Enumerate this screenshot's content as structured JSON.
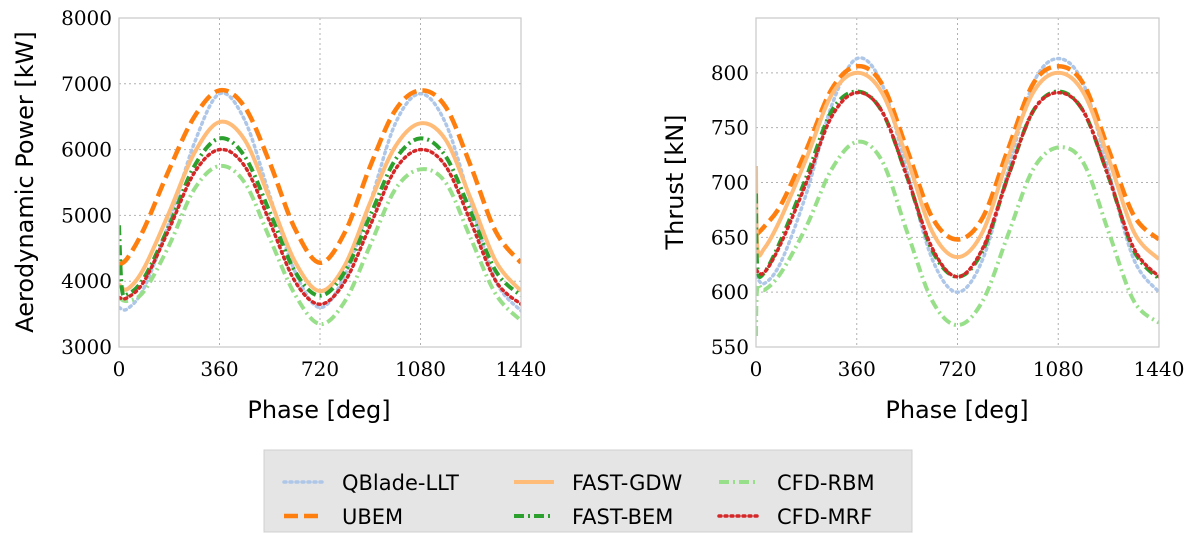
{
  "chart_data": [
    {
      "type": "line",
      "xlabel": "Phase [deg]",
      "ylabel": "Aerodynamic Power [kW]",
      "xlim": [
        0,
        1440
      ],
      "ylim": [
        3000,
        8000
      ],
      "xticks": [
        0,
        360,
        720,
        1080,
        1440
      ],
      "yticks": [
        3000,
        4000,
        5000,
        6000,
        7000,
        8000
      ],
      "grid": true,
      "series": [
        {
          "name": "QBlade-LLT",
          "color": "#aec7e8",
          "style": "dotted",
          "x": [
            0,
            30,
            90,
            180,
            270,
            360,
            450,
            540,
            630,
            720,
            810,
            900,
            990,
            1080,
            1170,
            1260,
            1350,
            1440
          ],
          "y": [
            3600,
            3580,
            3900,
            4900,
            6100,
            6850,
            6450,
            5300,
            4150,
            3600,
            4100,
            5200,
            6400,
            6850,
            6400,
            5200,
            4000,
            3550
          ]
        },
        {
          "name": "UBEM",
          "color": "#ff7f0e",
          "style": "dashed",
          "x": [
            0,
            30,
            90,
            180,
            270,
            360,
            450,
            540,
            630,
            720,
            810,
            900,
            990,
            1080,
            1170,
            1260,
            1350,
            1440
          ],
          "y": [
            4250,
            4350,
            4800,
            5700,
            6500,
            6900,
            6650,
            5800,
            4800,
            4280,
            4750,
            5750,
            6600,
            6900,
            6650,
            5750,
            4750,
            4280
          ]
        },
        {
          "name": "FAST-GDW",
          "color": "#ffbb78",
          "style": "solid",
          "x": [
            0,
            30,
            90,
            180,
            270,
            360,
            450,
            540,
            630,
            720,
            810,
            900,
            990,
            1080,
            1170,
            1260,
            1350,
            1440
          ],
          "y": [
            3950,
            3880,
            4200,
            5050,
            5950,
            6420,
            6150,
            5250,
            4300,
            3850,
            4250,
            5200,
            6050,
            6400,
            6150,
            5250,
            4300,
            3850
          ]
        },
        {
          "name": "FAST-BEM",
          "color": "#2ca02c",
          "style": "dashdot",
          "x": [
            0,
            10,
            30,
            90,
            180,
            270,
            360,
            450,
            540,
            630,
            720,
            810,
            900,
            990,
            1080,
            1170,
            1260,
            1350,
            1440
          ],
          "y": [
            4850,
            3900,
            3800,
            4050,
            4850,
            5750,
            6170,
            5900,
            5050,
            4150,
            3780,
            4150,
            5000,
            5850,
            6170,
            5900,
            5050,
            4150,
            3780
          ]
        },
        {
          "name": "CFD-RBM",
          "color": "#98df8a",
          "style": "dashdot",
          "x": [
            0,
            30,
            90,
            180,
            270,
            360,
            450,
            540,
            630,
            720,
            810,
            900,
            990,
            1080,
            1170,
            1260,
            1350,
            1440
          ],
          "y": [
            3750,
            3700,
            3850,
            4550,
            5400,
            5750,
            5500,
            4650,
            3800,
            3350,
            3700,
            4550,
            5400,
            5700,
            5500,
            4650,
            3800,
            3400
          ]
        },
        {
          "name": "CFD-MRF",
          "color": "#d62728",
          "style": "dotted",
          "x": [
            0,
            30,
            90,
            180,
            270,
            360,
            450,
            540,
            630,
            720,
            810,
            900,
            990,
            1080,
            1170,
            1260,
            1350,
            1440
          ],
          "y": [
            3750,
            3750,
            4000,
            4800,
            5650,
            6000,
            5750,
            4900,
            4000,
            3650,
            4000,
            4850,
            5700,
            6000,
            5750,
            4900,
            4000,
            3650
          ]
        }
      ]
    },
    {
      "type": "line",
      "xlabel": "Phase [deg]",
      "ylabel": "Thrust [kN]",
      "xlim": [
        0,
        1440
      ],
      "ylim": [
        550,
        850
      ],
      "xticks": [
        0,
        360,
        720,
        1080,
        1440
      ],
      "yticks": [
        550,
        600,
        650,
        700,
        750,
        800
      ],
      "grid": true,
      "series": [
        {
          "name": "QBlade-LLT",
          "color": "#aec7e8",
          "style": "dotted",
          "x": [
            0,
            30,
            90,
            180,
            270,
            360,
            450,
            540,
            630,
            720,
            810,
            900,
            990,
            1080,
            1170,
            1260,
            1350,
            1440
          ],
          "y": [
            615,
            608,
            628,
            690,
            770,
            813,
            790,
            710,
            630,
            600,
            630,
            710,
            790,
            813,
            790,
            710,
            630,
            600
          ]
        },
        {
          "name": "UBEM",
          "color": "#ff7f0e",
          "style": "dashed",
          "x": [
            0,
            30,
            90,
            180,
            270,
            360,
            450,
            540,
            630,
            720,
            810,
            900,
            990,
            1080,
            1170,
            1260,
            1350,
            1440
          ],
          "y": [
            652,
            660,
            680,
            730,
            785,
            806,
            790,
            730,
            668,
            648,
            668,
            730,
            790,
            806,
            790,
            730,
            670,
            648
          ]
        },
        {
          "name": "FAST-GDW",
          "color": "#ffbb78",
          "style": "solid",
          "x": [
            0,
            5,
            30,
            90,
            180,
            270,
            360,
            450,
            540,
            630,
            720,
            810,
            900,
            990,
            1080,
            1170,
            1260,
            1350,
            1440
          ],
          "y": [
            715,
            640,
            640,
            668,
            722,
            780,
            800,
            782,
            722,
            655,
            632,
            655,
            722,
            782,
            800,
            782,
            722,
            655,
            630
          ]
        },
        {
          "name": "FAST-BEM",
          "color": "#2ca02c",
          "style": "dashdot",
          "x": [
            0,
            5,
            30,
            90,
            180,
            270,
            360,
            450,
            540,
            630,
            720,
            810,
            900,
            990,
            1080,
            1170,
            1260,
            1350,
            1440
          ],
          "y": [
            690,
            622,
            618,
            648,
            705,
            765,
            783,
            765,
            705,
            638,
            614,
            638,
            705,
            765,
            783,
            765,
            705,
            638,
            612
          ]
        },
        {
          "name": "CFD-RBM",
          "color": "#98df8a",
          "style": "dashdot",
          "x": [
            0,
            5,
            30,
            90,
            180,
            270,
            360,
            450,
            540,
            630,
            720,
            810,
            900,
            990,
            1080,
            1170,
            1260,
            1350,
            1440
          ],
          "y": [
            560,
            605,
            602,
            618,
            660,
            712,
            737,
            720,
            655,
            592,
            570,
            592,
            652,
            712,
            732,
            718,
            655,
            592,
            572
          ]
        },
        {
          "name": "CFD-MRF",
          "color": "#d62728",
          "style": "dotted",
          "x": [
            0,
            30,
            90,
            180,
            270,
            360,
            450,
            540,
            630,
            720,
            810,
            900,
            990,
            1080,
            1170,
            1260,
            1350,
            1440
          ],
          "y": [
            620,
            618,
            645,
            700,
            760,
            782,
            765,
            705,
            640,
            614,
            640,
            705,
            765,
            782,
            765,
            705,
            640,
            614
          ]
        }
      ]
    }
  ],
  "legend": {
    "entries": [
      {
        "label": "QBlade-LLT",
        "color": "#aec7e8",
        "style": "dotted"
      },
      {
        "label": "FAST-GDW",
        "color": "#ffbb78",
        "style": "solid"
      },
      {
        "label": "CFD-RBM",
        "color": "#98df8a",
        "style": "dashdot"
      },
      {
        "label": "UBEM",
        "color": "#ff7f0e",
        "style": "dashed"
      },
      {
        "label": "FAST-BEM",
        "color": "#2ca02c",
        "style": "dashdot"
      },
      {
        "label": "CFD-MRF",
        "color": "#d62728",
        "style": "dotted"
      }
    ],
    "placement": "bottom-center",
    "background": "#e5e5e5"
  }
}
